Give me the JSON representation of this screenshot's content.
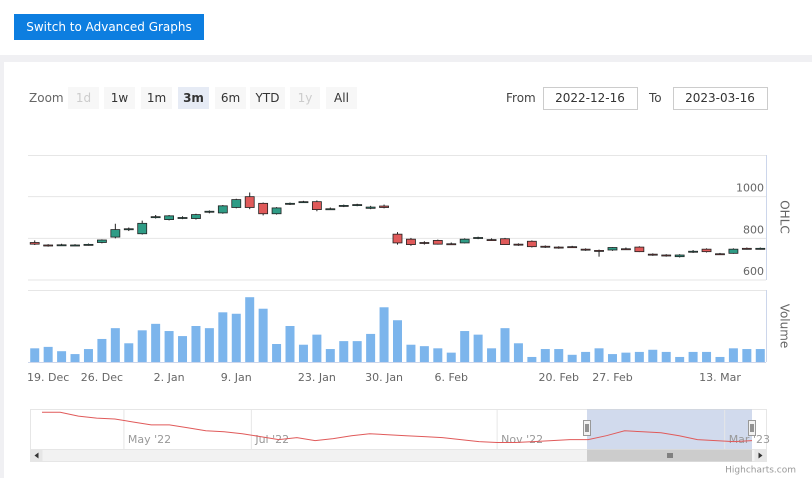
{
  "button": "Switch to Advanced Graphs",
  "range_selector": {
    "zoom_label": "Zoom",
    "buttons": [
      {
        "label": "1d",
        "state": "disabled"
      },
      {
        "label": "1w",
        "state": "normal"
      },
      {
        "label": "1m",
        "state": "normal"
      },
      {
        "label": "3m",
        "state": "selected"
      },
      {
        "label": "6m",
        "state": "normal"
      },
      {
        "label": "YTD",
        "state": "normal"
      },
      {
        "label": "1y",
        "state": "disabled"
      },
      {
        "label": "All",
        "state": "normal"
      }
    ],
    "from_label": "From",
    "from": "2022-12-16",
    "to_label": "To",
    "to": "2023-03-16"
  },
  "chart_data": [
    {
      "type": "candlestick",
      "y_axis_title": "OHLC",
      "categories": [
        null,
        "19. Dec",
        null,
        null,
        null,
        "26. Dec",
        null,
        null,
        null,
        null,
        "2. Jan",
        null,
        null,
        null,
        null,
        "9. Jan",
        null,
        null,
        null,
        null,
        null,
        "23. Jan",
        null,
        null,
        null,
        null,
        "30. Jan",
        null,
        null,
        null,
        null,
        "6. Feb",
        null,
        null,
        null,
        null,
        null,
        null,
        null,
        "20. Feb",
        null,
        null,
        null,
        "27. Feb",
        null,
        null,
        null,
        null,
        null,
        null,
        null,
        "13. Mar",
        null,
        null,
        null
      ],
      "open": [
        780,
        768,
        768,
        768,
        770,
        780,
        806,
        842,
        822,
        900,
        890,
        898,
        895,
        926,
        922,
        948,
        1000,
        968,
        918,
        964,
        974,
        976,
        940,
        955,
        960,
        944,
        955,
        820,
        796,
        780,
        790,
        774,
        778,
        800,
        794,
        798,
        772,
        786,
        762,
        758,
        760,
        748,
        742,
        744,
        750,
        758,
        724,
        720,
        712,
        736,
        748,
        726,
        728,
        752,
        750
      ],
      "high": [
        790,
        772,
        774,
        772,
        775,
        795,
        870,
        852,
        885,
        912,
        912,
        906,
        918,
        934,
        960,
        990,
        1020,
        972,
        950,
        972,
        980,
        982,
        948,
        962,
        966,
        956,
        962,
        830,
        802,
        786,
        794,
        780,
        800,
        808,
        800,
        802,
        776,
        790,
        766,
        762,
        764,
        752,
        746,
        758,
        756,
        762,
        728,
        724,
        724,
        744,
        752,
        730,
        752,
        756,
        756
      ],
      "low": [
        768,
        760,
        764,
        764,
        765,
        776,
        800,
        835,
        818,
        895,
        886,
        892,
        890,
        920,
        918,
        944,
        940,
        910,
        914,
        960,
        970,
        930,
        936,
        950,
        954,
        940,
        944,
        770,
        764,
        770,
        770,
        768,
        776,
        796,
        788,
        768,
        764,
        756,
        754,
        750,
        754,
        740,
        712,
        740,
        744,
        734,
        716,
        712,
        708,
        730,
        732,
        720,
        726,
        746,
        746
      ],
      "close": [
        772,
        765,
        769,
        768,
        771,
        792,
        842,
        846,
        872,
        904,
        908,
        900,
        914,
        930,
        956,
        986,
        948,
        918,
        946,
        968,
        976,
        938,
        942,
        958,
        962,
        950,
        948,
        778,
        770,
        776,
        772,
        772,
        796,
        804,
        792,
        770,
        768,
        760,
        758,
        754,
        758,
        744,
        740,
        756,
        748,
        736,
        720,
        716,
        720,
        738,
        736,
        724,
        748,
        750,
        752
      ],
      "up_color": "#2f9c86",
      "down_color": "#e05a5a",
      "ylim": [
        600,
        1200
      ],
      "yticks": [
        600,
        800,
        1000
      ],
      "grid": true
    },
    {
      "type": "bar",
      "y_axis_title": "Volume",
      "values": [
        19,
        21,
        15,
        11,
        18,
        32,
        47,
        26,
        44,
        53,
        43,
        36,
        50,
        47,
        69,
        67,
        90,
        74,
        25,
        50,
        24,
        38,
        18,
        29,
        29,
        39,
        76,
        58,
        24,
        22,
        19,
        13,
        43,
        38,
        19,
        47,
        26,
        7,
        18,
        18,
        10,
        14,
        19,
        11,
        13,
        14,
        17,
        14,
        7,
        14,
        14,
        7,
        19,
        18,
        18
      ],
      "color": "#7cb5ec",
      "ylim": [
        0,
        100
      ],
      "yticks": [
        0
      ]
    },
    {
      "type": "line",
      "values": [
        1400,
        1400,
        1310,
        1265,
        1243,
        1175,
        1108,
        1108,
        1040,
        973,
        950,
        905,
        838,
        770,
        815,
        748,
        793,
        860,
        905,
        883,
        860,
        838,
        815,
        770,
        725,
        703,
        703,
        725,
        748,
        770,
        770,
        860,
        973,
        950,
        928,
        860,
        770,
        748,
        725,
        748
      ],
      "color": "#e05a5a",
      "ylim": [
        600,
        1450
      ],
      "xticks": [
        {
          "value": 4.5,
          "label": "May '22"
        },
        {
          "value": 11.5,
          "label": "Jul '22"
        },
        {
          "value": 25,
          "label": "Nov '22"
        },
        {
          "value": 37.5,
          "label": "Mar '23"
        }
      ]
    }
  ],
  "credits": "Highcharts.com"
}
